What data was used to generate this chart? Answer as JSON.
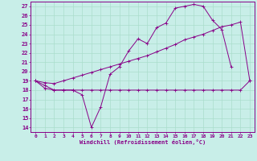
{
  "background_color": "#c8eee8",
  "grid_color": "#aaddcc",
  "line_color": "#880088",
  "xlim": [
    -0.5,
    23.5
  ],
  "ylim": [
    13.5,
    27.5
  ],
  "ytick_vals": [
    14,
    15,
    16,
    17,
    18,
    19,
    20,
    21,
    22,
    23,
    24,
    25,
    26,
    27
  ],
  "xtick_vals": [
    0,
    1,
    2,
    3,
    4,
    5,
    6,
    7,
    8,
    9,
    10,
    11,
    12,
    13,
    14,
    15,
    16,
    17,
    18,
    19,
    20,
    21,
    22,
    23
  ],
  "xlabel": "Windchill (Refroidissement éolien,°C)",
  "line1_x": [
    0,
    1,
    2,
    3,
    4,
    5,
    6,
    7,
    8,
    9,
    10,
    11,
    12,
    13,
    14,
    15,
    16,
    17,
    18,
    19,
    20,
    21
  ],
  "line1_y": [
    19,
    18.5,
    18,
    18,
    18,
    17.5,
    14,
    16.2,
    19.7,
    20.5,
    22.2,
    23.5,
    23,
    24.7,
    25.2,
    26.8,
    27,
    27.2,
    27,
    25.5,
    24.5,
    20.5
  ],
  "line2_x": [
    0,
    1,
    2,
    3,
    4,
    5,
    6,
    7,
    8,
    9,
    10,
    11,
    12,
    13,
    14,
    15,
    16,
    17,
    18,
    19,
    20,
    21,
    22,
    23
  ],
  "line2_y": [
    19,
    18.2,
    18,
    18,
    18,
    18,
    18,
    18,
    18,
    18,
    18,
    18,
    18,
    18,
    18,
    18,
    18,
    18,
    18,
    18,
    18,
    18,
    18,
    19
  ],
  "line3_x": [
    0,
    1,
    2,
    3,
    4,
    5,
    6,
    7,
    8,
    9,
    10,
    11,
    12,
    13,
    14,
    15,
    16,
    17,
    18,
    19,
    20,
    21,
    22,
    23
  ],
  "line3_y": [
    19,
    18.8,
    18.7,
    19.0,
    19.3,
    19.6,
    19.9,
    20.2,
    20.5,
    20.8,
    21.1,
    21.4,
    21.7,
    22.1,
    22.5,
    22.9,
    23.4,
    23.7,
    24.0,
    24.4,
    24.8,
    25.0,
    25.3,
    19
  ]
}
